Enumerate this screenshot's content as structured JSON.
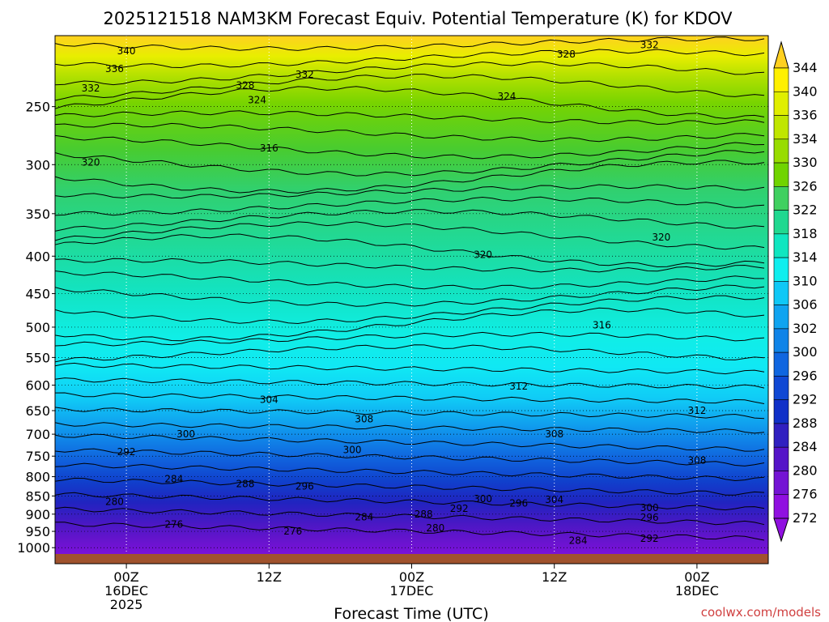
{
  "chart_data": {
    "type": "heatmap",
    "title": "2025121518 NAM3KM Forecast Equiv. Potential Temperature (K) for KDOV",
    "xlabel": "Forecast Time (UTC)",
    "ylabel": "",
    "y_ticks": [
      "250",
      "300",
      "350",
      "400",
      "450",
      "500",
      "550",
      "600",
      "650",
      "700",
      "750",
      "800",
      "850",
      "900",
      "950",
      "1000"
    ],
    "y_tick_values": [
      250,
      300,
      350,
      400,
      450,
      500,
      550,
      600,
      650,
      700,
      750,
      800,
      850,
      900,
      950,
      1000
    ],
    "ylim": [
      200,
      1020
    ],
    "y_scale": "log",
    "x_ticks": [
      {
        "hours": 6,
        "l1": "00Z",
        "l2": "16DEC",
        "l3": "2025"
      },
      {
        "hours": 18,
        "l1": "12Z",
        "l2": "",
        "l3": ""
      },
      {
        "hours": 30,
        "l1": "00Z",
        "l2": "17DEC",
        "l3": ""
      },
      {
        "hours": 42,
        "l1": "12Z",
        "l2": "",
        "l3": ""
      },
      {
        "hours": 54,
        "l1": "00Z",
        "l2": "18DEC",
        "l3": ""
      }
    ],
    "xlim": [
      0,
      60
    ],
    "colorbar": {
      "labels": [
        "344",
        "340",
        "336",
        "334",
        "330",
        "326",
        "322",
        "318",
        "314",
        "310",
        "306",
        "302",
        "300",
        "296",
        "292",
        "288",
        "284",
        "280",
        "276",
        "272"
      ],
      "colors": [
        "#ffd020",
        "#fff000",
        "#e0ee00",
        "#c0e600",
        "#98dc00",
        "#70d400",
        "#40d060",
        "#20d890",
        "#10e6c0",
        "#10eeee",
        "#10c8f6",
        "#10a4f0",
        "#1084e8",
        "#1066e0",
        "#1048d4",
        "#1030c8",
        "#3020c0",
        "#5514c8",
        "#7414d4",
        "#9010e0"
      ]
    },
    "contour_labels": [
      {
        "text": "340",
        "hours": 6,
        "p": 210
      },
      {
        "text": "336",
        "hours": 5,
        "p": 222
      },
      {
        "text": "332",
        "hours": 3,
        "p": 236
      },
      {
        "text": "332",
        "hours": 21,
        "p": 226
      },
      {
        "text": "328",
        "hours": 16,
        "p": 234
      },
      {
        "text": "324",
        "hours": 17,
        "p": 245
      },
      {
        "text": "332",
        "hours": 50,
        "p": 206
      },
      {
        "text": "328",
        "hours": 43,
        "p": 212
      },
      {
        "text": "324",
        "hours": 38,
        "p": 242
      },
      {
        "text": "320",
        "hours": 3,
        "p": 298
      },
      {
        "text": "316",
        "hours": 18,
        "p": 285
      },
      {
        "text": "320",
        "hours": 36,
        "p": 398
      },
      {
        "text": "320",
        "hours": 51,
        "p": 377
      },
      {
        "text": "316",
        "hours": 46,
        "p": 497
      },
      {
        "text": "312",
        "hours": 39,
        "p": 602
      },
      {
        "text": "312",
        "hours": 54,
        "p": 650
      },
      {
        "text": "304",
        "hours": 18,
        "p": 628
      },
      {
        "text": "308",
        "hours": 26,
        "p": 668
      },
      {
        "text": "308",
        "hours": 42,
        "p": 700
      },
      {
        "text": "308",
        "hours": 54,
        "p": 760
      },
      {
        "text": "300",
        "hours": 11,
        "p": 700
      },
      {
        "text": "300",
        "hours": 25,
        "p": 735
      },
      {
        "text": "292",
        "hours": 6,
        "p": 740
      },
      {
        "text": "288",
        "hours": 16,
        "p": 818
      },
      {
        "text": "284",
        "hours": 10,
        "p": 806
      },
      {
        "text": "280",
        "hours": 5,
        "p": 865
      },
      {
        "text": "296",
        "hours": 21,
        "p": 825
      },
      {
        "text": "276",
        "hours": 10,
        "p": 930
      },
      {
        "text": "276",
        "hours": 20,
        "p": 950
      },
      {
        "text": "284",
        "hours": 26,
        "p": 908
      },
      {
        "text": "288",
        "hours": 31,
        "p": 900
      },
      {
        "text": "292",
        "hours": 34,
        "p": 885
      },
      {
        "text": "300",
        "hours": 36,
        "p": 858
      },
      {
        "text": "296",
        "hours": 39,
        "p": 870
      },
      {
        "text": "280",
        "hours": 32,
        "p": 940
      },
      {
        "text": "304",
        "hours": 42,
        "p": 860
      },
      {
        "text": "300",
        "hours": 50,
        "p": 882
      },
      {
        "text": "296",
        "hours": 50,
        "p": 910
      },
      {
        "text": "292",
        "hours": 50,
        "p": 972
      },
      {
        "text": "284",
        "hours": 44,
        "p": 978
      }
    ]
  },
  "credit": "coolwx.com/models"
}
